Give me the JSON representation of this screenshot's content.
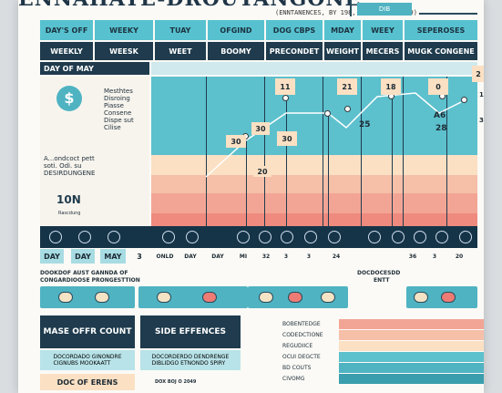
{
  "header": {
    "title": "ENNAHATE-DROUTANGONE",
    "subtitle": "(ENNTANENCES, BY 198, 20 (B), DB 199)",
    "top_box": "DIB"
  },
  "columns_row1": [
    "DAY'S OFF",
    "WEEKY",
    "TUAY",
    "OFGIND",
    "DOG CBPS",
    "MDAY",
    "WEEY",
    "SEPEROSES"
  ],
  "columns_row2": [
    "WEEKLY",
    "WEESK",
    "WEET",
    "BOOMY",
    "PRECONDET",
    "WEIGHT",
    "MECERS",
    "MUGK CONGENE"
  ],
  "row_label": "DAY OF MAY",
  "left_panel": {
    "dollar": "$",
    "text1": "Mesthtes\nDisroing\nPiasse\nConsene\nDispe sut\nCilise",
    "text2": "A...ondcoct pett\nsoti. Odi. su\nDESIRDUNGENE",
    "big": "10N",
    "small": "Rascdung"
  },
  "values": {
    "v1": "11",
    "v2": "21",
    "v3": "18",
    "v4": "0",
    "v5": "2",
    "v6": "30",
    "v7": "30",
    "v8": "30",
    "v9": "20",
    "v10": "25",
    "v11": "A6",
    "v12": "28",
    "v13": "30",
    "v14": "10"
  },
  "icon_row": [
    "DAY",
    "DAY",
    "MAY",
    "3",
    "ONLD",
    "DAY",
    "DAY",
    "MI",
    "32",
    "3",
    "3",
    "24",
    "36",
    "3",
    "20"
  ],
  "legend": {
    "label1": "DOOKDOF AUST GANNDA OF",
    "label2": "CONGARDIOOSE PRONGESTTION",
    "label3": "DOCDOCESDD",
    "label4": "ENTT"
  },
  "bottom": {
    "box1": "MASE OFFR COUNT",
    "box2": "SIDE EFFENCES",
    "text1": "DOCORDADO GINONDRE\nCIGNUBS MOOKAATT",
    "text2": "DOCORDERDO DENDRENGE\nDIBLIDGO ETNONDO SPIRY",
    "box3": "DOC OF ERENS",
    "tail": "DOX BOJ O 2049",
    "stripes": [
      "BOBENTEDGE",
      "CODEDCTIONE",
      "REGUDIICE",
      "OCUI DEGCTE",
      "BD COUTS",
      "CIVOMG"
    ]
  },
  "colors": {
    "teal": "#57c1cf",
    "navy": "#1f3b4d",
    "peach": "#fbe0c3",
    "salmon": "#f3a595",
    "coral": "#ee7b74"
  }
}
